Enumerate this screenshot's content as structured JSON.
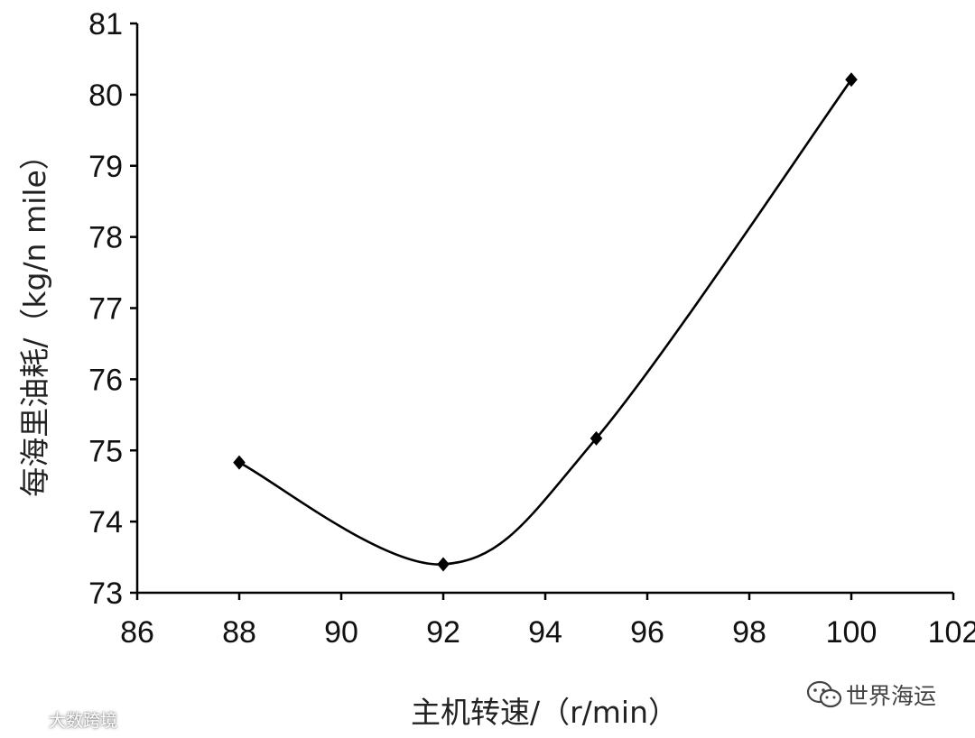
{
  "chart_data": {
    "type": "line",
    "title": "",
    "xlabel": "主机转速/（r/min）",
    "ylabel": "每海里油耗/（kg/n mile）",
    "xlim": [
      86,
      102
    ],
    "ylim": [
      73,
      81
    ],
    "x_ticks": [
      "86",
      "88",
      "90",
      "92",
      "94",
      "96",
      "98",
      "100",
      "102"
    ],
    "y_ticks": [
      "73",
      "74",
      "75",
      "76",
      "77",
      "78",
      "79",
      "80",
      "81"
    ],
    "grid": false,
    "legend": "none",
    "series": [
      {
        "x": [
          88,
          92,
          95,
          100
        ],
        "y": [
          74.83,
          73.4,
          75.17,
          80.21
        ],
        "marker": "diamond",
        "smooth": true
      }
    ]
  },
  "watermarks": {
    "left": "大数跨境",
    "right": "世界海运"
  },
  "colors": {
    "line": "#000000",
    "axis": "#000000"
  }
}
